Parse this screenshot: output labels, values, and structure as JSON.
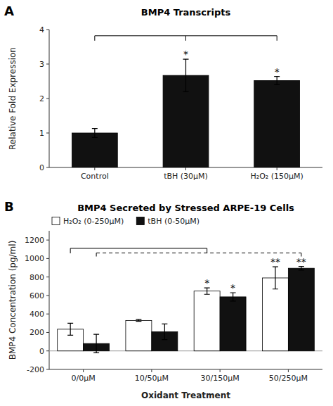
{
  "chart_data": [
    {
      "type": "bar",
      "panel_label": "A",
      "title": "BMP4 Transcripts",
      "ylabel": "Relative Fold Expression",
      "categories": [
        "Control",
        "tBH (30μM)",
        "H₂O₂ (150μM)"
      ],
      "values": [
        1.0,
        2.67,
        2.52
      ],
      "errors": [
        0.13,
        0.47,
        0.12
      ],
      "significance": [
        null,
        "*",
        "*"
      ],
      "color": "#111111",
      "ylim": [
        0,
        4
      ],
      "yticks": [
        0,
        1,
        2,
        3,
        4
      ],
      "grid": false,
      "brackets": [
        {
          "y": 3.82,
          "at": [
            0,
            1,
            2
          ],
          "line_style": "solid"
        }
      ]
    },
    {
      "type": "bar",
      "panel_label": "B",
      "title": "BMP4 Secreted by Stressed ARPE-19 Cells",
      "ylabel": "BMP4 Concentration (pg/ml)",
      "xlabel": "Oxidant Treatment",
      "categories": [
        "0/0μM",
        "10/50μM",
        "30/150μM",
        "50/250μM"
      ],
      "series": [
        {
          "name": "H₂O₂ (0-250μM)",
          "color": "#ffffff",
          "values": [
            235,
            330,
            648,
            790
          ],
          "errors": [
            65,
            10,
            35,
            120
          ],
          "significance": [
            null,
            null,
            "*",
            "**"
          ]
        },
        {
          "name": "tBH (0-50μM)",
          "color": "#111111",
          "values": [
            80,
            207,
            585,
            895
          ],
          "errors": [
            100,
            85,
            45,
            20
          ],
          "significance": [
            null,
            null,
            "*",
            "**"
          ]
        }
      ],
      "ylim": [
        -200,
        1300
      ],
      "yticks": [
        -200,
        0,
        200,
        400,
        600,
        800,
        1000,
        1200
      ],
      "grid": false,
      "legend": "upper left",
      "brackets": [
        {
          "y": 1110,
          "series": 0,
          "at": [
            0,
            2
          ],
          "line_style": "solid"
        },
        {
          "y": 1060,
          "series": 1,
          "at": [
            0,
            3
          ],
          "line_style": "dashed"
        }
      ]
    }
  ]
}
